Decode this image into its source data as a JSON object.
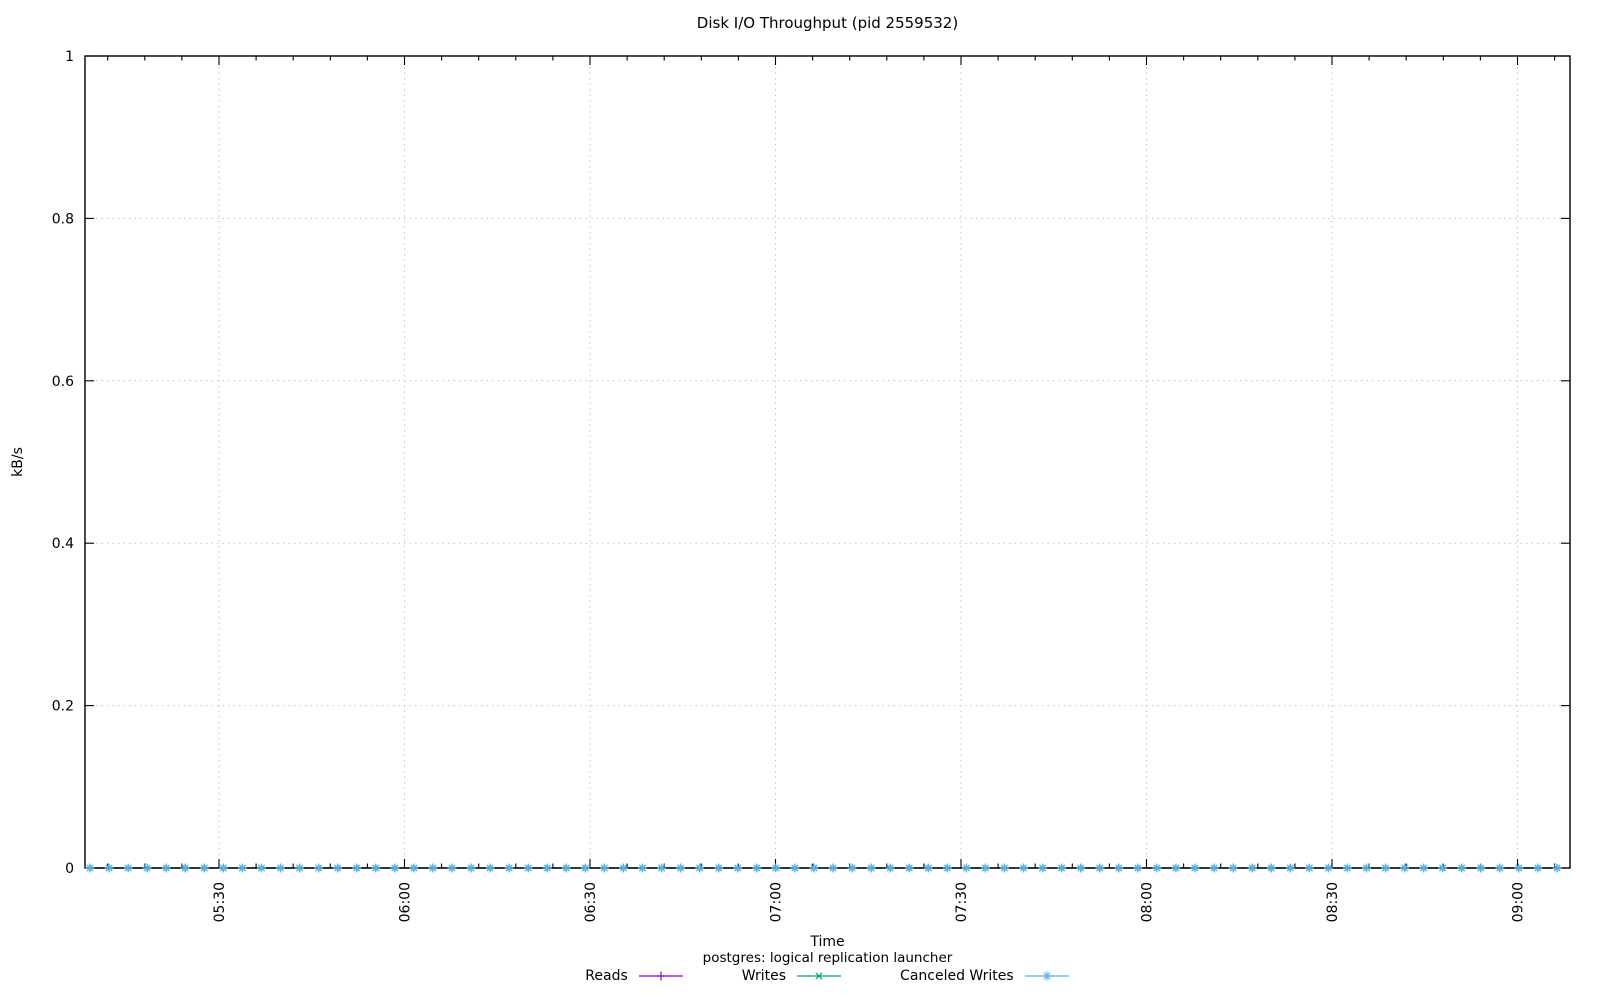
{
  "page": {
    "background": "#ffffff"
  },
  "chart_data": {
    "type": "line",
    "title": "Disk I/O Throughput (pid 2559532)",
    "xlabel": "Time",
    "ylabel": "kB/s",
    "legend_title": "postgres: logical replication launcher",
    "legend_position": "bottom-center",
    "grid": true,
    "ylim": [
      0,
      1
    ],
    "yticks": {
      "values": [
        0,
        0.2,
        0.4,
        0.6,
        0.8,
        1
      ],
      "labels": [
        "0",
        "0.2",
        "0.4",
        "0.6",
        "0.8",
        "1"
      ]
    },
    "xticks": {
      "labels": [
        "05:30",
        "06:00",
        "06:30",
        "07:00",
        "07:30",
        "08:00",
        "08:30",
        "09:00"
      ],
      "interval_minutes": 30,
      "minor_divisions_per_major": 5,
      "label_rotation_deg": -90
    },
    "x_window": {
      "start": "05:08",
      "end": "09:08"
    },
    "sampling": {
      "points": 78,
      "interval_minutes": 3
    },
    "series": [
      {
        "name": "Reads",
        "color": "#9400d3",
        "marker": "plus",
        "style": "linespoints",
        "constant_value": 0
      },
      {
        "name": "Writes",
        "color": "#009e73",
        "marker": "cross",
        "style": "linespoints",
        "constant_value": 0
      },
      {
        "name": "Canceled Writes",
        "color": "#56b4e9",
        "marker": "asterisk",
        "style": "linespoints",
        "constant_value": 0
      }
    ],
    "axis_color": "#000000",
    "grid_color": "#c3c3c3",
    "text_color": "#000000"
  }
}
